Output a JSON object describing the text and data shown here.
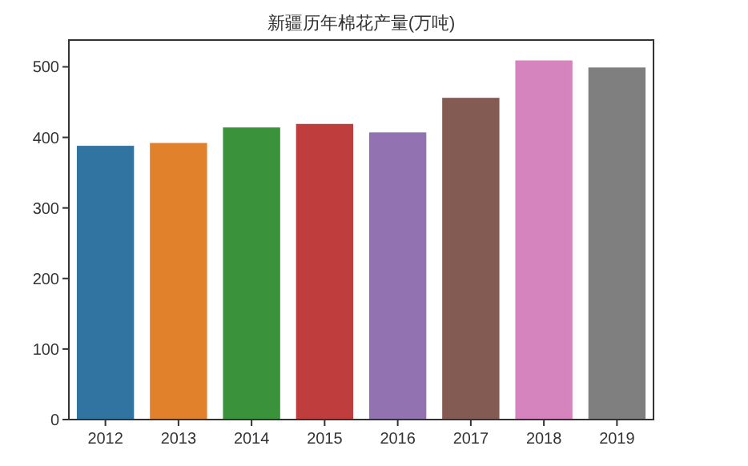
{
  "chart_data": {
    "type": "bar",
    "title": "新疆历年棉花产量(万吨)",
    "categories": [
      "2012",
      "2013",
      "2014",
      "2015",
      "2016",
      "2017",
      "2018",
      "2019"
    ],
    "values": [
      389,
      393,
      415,
      420,
      408,
      457,
      510,
      500
    ],
    "colors": [
      "#3274a1",
      "#e1812c",
      "#3a923a",
      "#c03d3e",
      "#9372b2",
      "#845b53",
      "#d684bd",
      "#7f7f7f"
    ],
    "ylim": [
      0,
      538
    ],
    "yticks": [
      0,
      100,
      200,
      300,
      400,
      500
    ],
    "grid": false
  }
}
